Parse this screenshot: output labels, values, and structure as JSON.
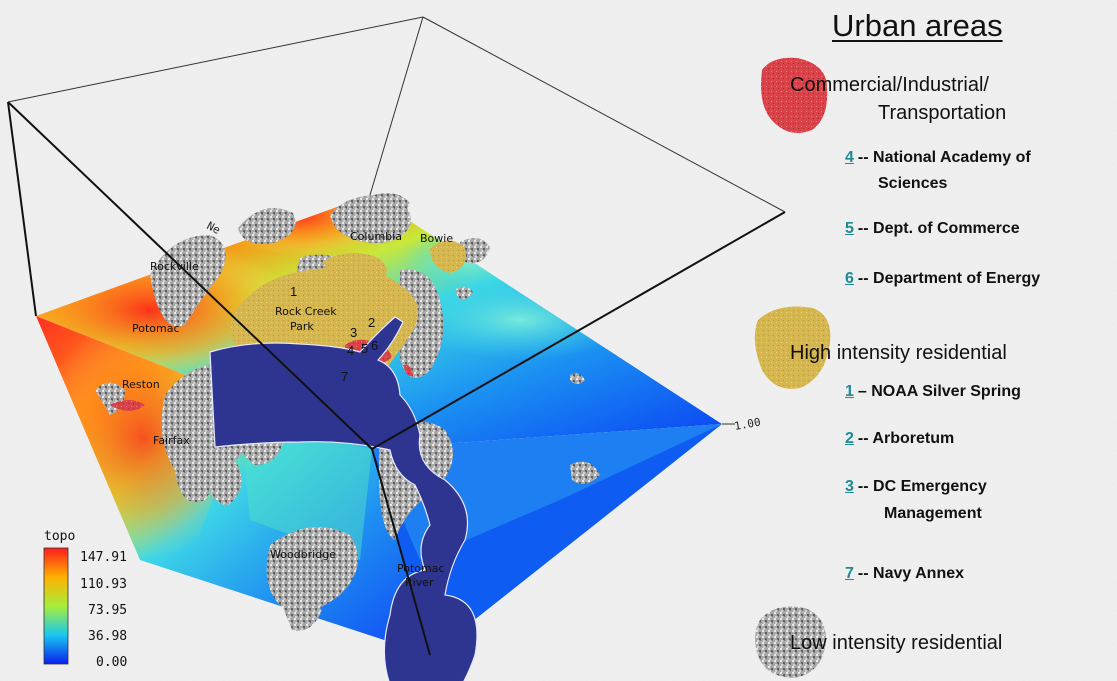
{
  "legend": {
    "title": "Urban areas",
    "commercial": {
      "label_line1": "Commercial/Industrial/",
      "label_line2": "Transportation",
      "color": "#d9454a",
      "items": [
        {
          "num": "4",
          "text": "-- National Academy of",
          "text2": "Sciences"
        },
        {
          "num": "5",
          "text": "-- Dept. of Commerce"
        },
        {
          "num": "6",
          "text": "-- Department of Energy"
        }
      ]
    },
    "high_residential": {
      "label": "High intensity residential",
      "color": "#d4b64c",
      "items": [
        {
          "num": "1",
          "text": "– NOAA Silver Spring"
        },
        {
          "num": "2",
          "text": "-- Arboretum"
        },
        {
          "num": "3",
          "text": "-- DC Emergency",
          "text2": "Management"
        },
        {
          "num": "7",
          "text": "-- Navy Annex"
        }
      ]
    },
    "low_residential": {
      "label": "Low intensity residential",
      "color": "#a8a8a8"
    }
  },
  "map": {
    "places": {
      "rockville": "Rockville",
      "columbia": "Columbia",
      "bowie": "Bowie",
      "potomac": "Potomac",
      "reston": "Reston",
      "fairfax": "Fairfax",
      "rock_creek_1": "Rock Creek",
      "rock_creek_2": "Park",
      "woodbridge": "Woodbridge",
      "potomac_river_1": "Potomac",
      "potomac_river_2": "River"
    },
    "numbers": [
      "1",
      "2",
      "3",
      "4",
      "5",
      "6",
      "7"
    ],
    "axis_label": "1.00",
    "axis_partial": "Ne",
    "water_color": "#2e3590"
  },
  "colorbar": {
    "title": "topo",
    "ticks": [
      "147.91",
      "110.93",
      "73.95",
      "36.98",
      "0.00"
    ],
    "colors": [
      "#ff1c1c",
      "#ffb000",
      "#a8ee3a",
      "#18c8ee",
      "#0a20f0"
    ]
  }
}
